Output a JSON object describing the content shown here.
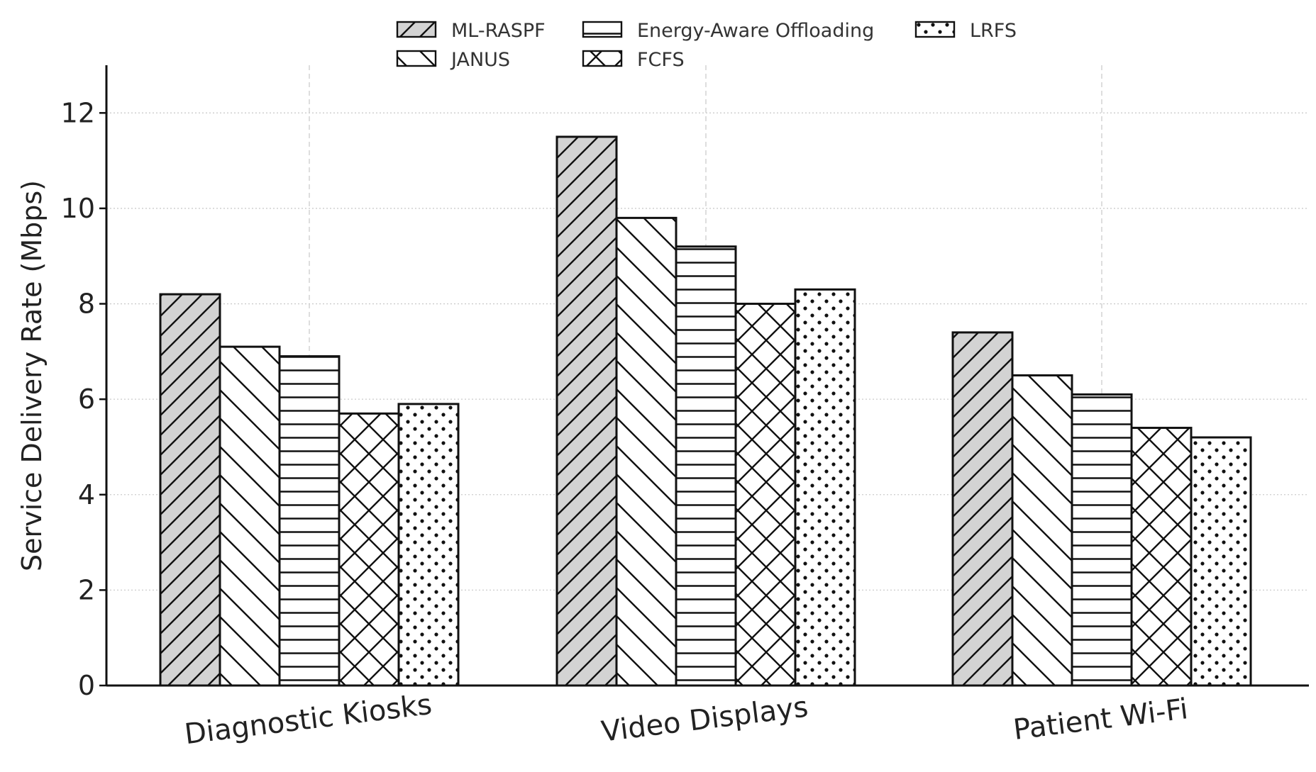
{
  "chart_data": {
    "type": "bar",
    "title": "",
    "xlabel": "",
    "ylabel": "Service Delivery Rate (Mbps)",
    "ylim": [
      0,
      13
    ],
    "yticks": [
      0,
      2,
      4,
      6,
      8,
      10,
      12
    ],
    "categories": [
      "Diagnostic Kiosks",
      "Video Displays",
      "Patient Wi-Fi"
    ],
    "series": [
      {
        "name": "ML-RASPF",
        "values": [
          8.2,
          11.5,
          7.4
        ],
        "pattern": "diag-up",
        "fill": "#d3d3d3"
      },
      {
        "name": "JANUS",
        "values": [
          7.1,
          9.8,
          6.5
        ],
        "pattern": "diag-down",
        "fill": "#ffffff"
      },
      {
        "name": "Energy-Aware Offloading",
        "values": [
          6.9,
          9.2,
          6.1
        ],
        "pattern": "horizontal",
        "fill": "#ffffff"
      },
      {
        "name": "FCFS",
        "values": [
          5.7,
          8.0,
          5.4
        ],
        "pattern": "cross",
        "fill": "#ffffff"
      },
      {
        "name": "LRFS",
        "values": [
          5.9,
          8.3,
          5.2
        ],
        "pattern": "dots",
        "fill": "#ffffff"
      }
    ],
    "grid": true,
    "legend_position": "top-center",
    "colors": {
      "edge": "#111111",
      "grid": "#cccccc",
      "text": "#222222"
    }
  }
}
